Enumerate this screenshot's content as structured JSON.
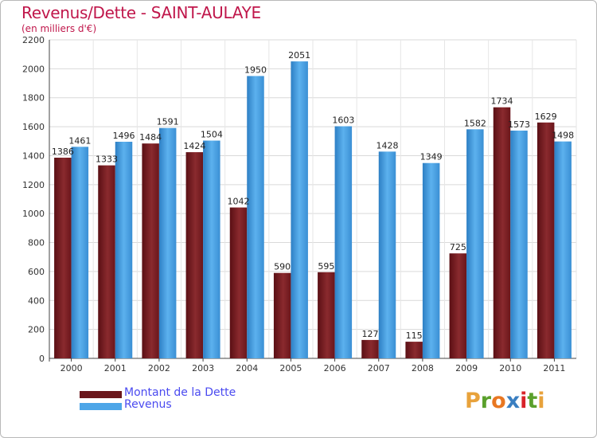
{
  "chart_data": {
    "type": "bar",
    "title": "Revenus/Dette - SAINT-AULAYE",
    "subtitle": "(en milliers d'€)",
    "categories": [
      "2000",
      "2001",
      "2002",
      "2003",
      "2004",
      "2005",
      "2006",
      "2007",
      "2008",
      "2009",
      "2010",
      "2011"
    ],
    "series": [
      {
        "name": "Montant de la Dette",
        "values": [
          1386,
          1333,
          1484,
          1424,
          1042,
          590,
          595,
          127,
          115,
          725,
          1734,
          1629
        ],
        "value_labels": [
          "1386",
          "1333",
          "1484",
          "1424",
          "1042",
          "590",
          "595",
          "127",
          "115",
          "725",
          "1734",
          "1629"
        ]
      },
      {
        "name": "Revenus",
        "values": [
          1461,
          1496,
          1591,
          1504,
          1950,
          2051,
          1603,
          1428,
          1349,
          1582,
          1573,
          1498
        ],
        "value_labels": [
          "1461",
          "1496",
          "1591",
          "1504",
          "1950",
          "2051",
          "1603",
          "1428",
          "1349",
          "1582",
          "1573",
          "1498"
        ]
      }
    ],
    "yticks": [
      "0",
      "200",
      "400",
      "600",
      "800",
      "1000",
      "1200",
      "1400",
      "1600",
      "1800",
      "2000",
      "2200"
    ],
    "ylim": [
      0,
      2200
    ],
    "grid": true,
    "legend_position": "bottom-left",
    "colors": {
      "dette": "#7a1e22",
      "revenus": "#4da6e8"
    }
  },
  "legend": {
    "dette_label": "Montant de la Dette",
    "revenus_label": "Revenus"
  },
  "logo": {
    "letters": [
      "P",
      "r",
      "o",
      "x",
      "i",
      "t",
      "i"
    ],
    "colors": [
      "#e8a23b",
      "#5aa02c",
      "#e87722",
      "#3a7fc1",
      "#d8232a",
      "#5aa02c",
      "#e8a23b"
    ]
  }
}
